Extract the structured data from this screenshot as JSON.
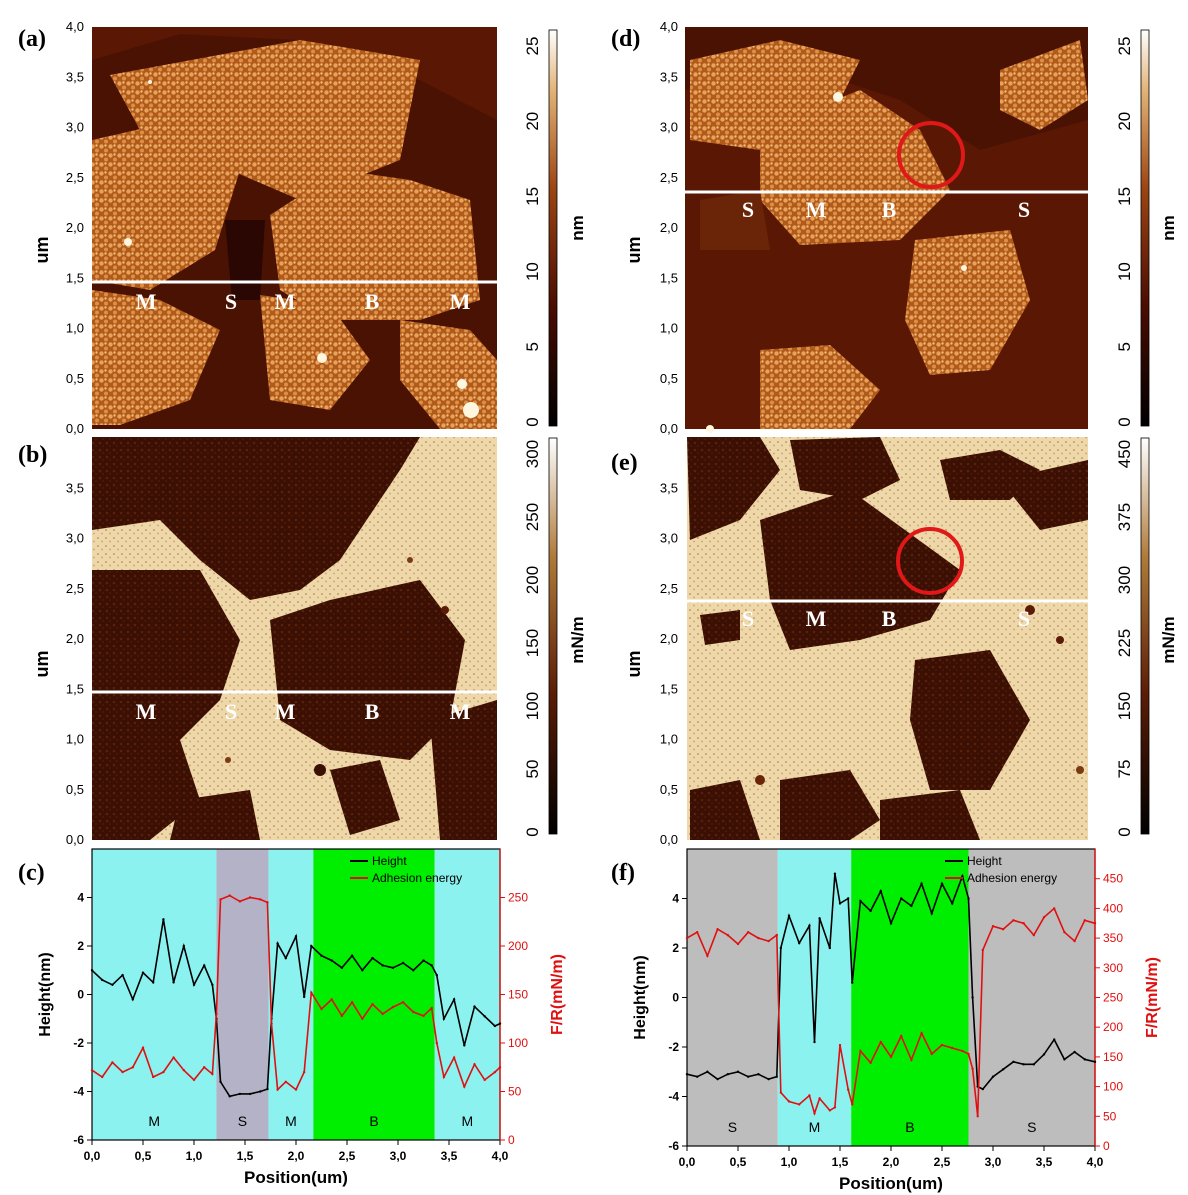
{
  "colors": {
    "afm_dark": "#3a0b02",
    "afm_mid": "#7a2a08",
    "afm_bright": "#e8a45a",
    "adh_dark": "#2a0a03",
    "adh_light": "#efd6a8",
    "region_M": "#8cf2f0",
    "region_S": "#b4b2c6",
    "region_S_f": "#bdbdbd",
    "region_B": "#00ee00",
    "height_line": "#000000",
    "adhesion_line": "#e01010",
    "circle": "#e01818",
    "right_axis": "#e01010"
  },
  "panels": {
    "a": {
      "label": "(a)",
      "regions": [
        "M",
        "S",
        "M",
        "B",
        "M"
      ],
      "colorbar_ticks": [
        "0",
        "5",
        "10",
        "15",
        "20",
        "25"
      ],
      "colorbar_unit": "nm"
    },
    "b": {
      "label": "(b)",
      "regions": [
        "M",
        "S",
        "M",
        "B",
        "M"
      ],
      "colorbar_ticks": [
        "0",
        "50",
        "100",
        "150",
        "200",
        "250",
        "300"
      ],
      "colorbar_unit": "mN/m"
    },
    "d": {
      "label": "(d)",
      "regions": [
        "S",
        "M",
        "B",
        "S"
      ],
      "colorbar_ticks": [
        "0",
        "5",
        "10",
        "15",
        "20",
        "25"
      ],
      "colorbar_unit": "nm"
    },
    "e": {
      "label": "(e)",
      "regions": [
        "S",
        "M",
        "B",
        "S"
      ],
      "colorbar_ticks": [
        "0",
        "75",
        "150",
        "225",
        "300",
        "375",
        "450"
      ],
      "colorbar_unit": "mN/m"
    },
    "c": {
      "label": "(c)"
    },
    "f": {
      "label": "(f)"
    },
    "image_ylabel": "um",
    "image_yticks_a": [
      "0,0",
      "0,5",
      "1,0",
      "1,5",
      "2,0",
      "2,5",
      "3,0",
      "3,5",
      "4,0"
    ],
    "image_yticks_b": [
      "0,0",
      "0,5",
      "1,0",
      "1,5",
      "2,0",
      "2,5",
      "3,0",
      "3,5"
    ]
  },
  "chart_data": [
    {
      "id": "c",
      "type": "line",
      "xlabel": "Position(um)",
      "ylabel": "Height(nm)",
      "ylabel_right": "F/R(mN/m)",
      "xlim": [
        0,
        4
      ],
      "ylim": [
        -6,
        6
      ],
      "ylim_right": [
        0,
        300
      ],
      "xticks": [
        "0,0",
        "0,5",
        "1,0",
        "1,5",
        "2,0",
        "2,5",
        "3,0",
        "3,5",
        "4,0"
      ],
      "yticks": [
        "-6",
        "-4",
        "-2",
        "0",
        "2",
        "4"
      ],
      "yticks_right": [
        "0",
        "50",
        "100",
        "150",
        "200",
        "250"
      ],
      "legend": [
        "Height",
        "Adhesion energy"
      ],
      "legend_position": "top-right",
      "regions": [
        {
          "label": "M",
          "x0": 0.0,
          "x1": 1.22
        },
        {
          "label": "S",
          "x0": 1.22,
          "x1": 1.73
        },
        {
          "label": "M",
          "x0": 1.73,
          "x1": 2.17
        },
        {
          "label": "B",
          "x0": 2.17,
          "x1": 3.36
        },
        {
          "label": "M",
          "x0": 3.36,
          "x1": 4.0
        }
      ],
      "series": [
        {
          "name": "Height",
          "axis": "left",
          "x": [
            0.0,
            0.1,
            0.2,
            0.3,
            0.4,
            0.5,
            0.6,
            0.7,
            0.8,
            0.9,
            1.0,
            1.1,
            1.18,
            1.22,
            1.26,
            1.35,
            1.45,
            1.55,
            1.65,
            1.72,
            1.76,
            1.82,
            1.9,
            2.0,
            2.08,
            2.15,
            2.25,
            2.35,
            2.45,
            2.55,
            2.65,
            2.75,
            2.85,
            2.95,
            3.05,
            3.15,
            3.25,
            3.33,
            3.38,
            3.45,
            3.55,
            3.65,
            3.75,
            3.85,
            3.95,
            4.0
          ],
          "values": [
            1.0,
            0.6,
            0.4,
            0.8,
            -0.2,
            0.9,
            0.5,
            3.1,
            0.5,
            2.0,
            0.4,
            1.2,
            0.4,
            -1.0,
            -3.6,
            -4.2,
            -4.1,
            -4.1,
            -4.0,
            -3.9,
            -1.0,
            2.1,
            1.5,
            2.4,
            -0.1,
            2.0,
            1.6,
            1.4,
            1.1,
            1.6,
            1.0,
            1.5,
            1.2,
            1.1,
            1.3,
            1.0,
            1.4,
            1.2,
            0.8,
            -1.0,
            -0.2,
            -2.1,
            -0.5,
            -0.9,
            -1.3,
            -1.2
          ]
        },
        {
          "name": "Adhesion energy",
          "axis": "right",
          "x": [
            0.0,
            0.1,
            0.2,
            0.3,
            0.4,
            0.5,
            0.6,
            0.7,
            0.8,
            0.9,
            1.0,
            1.1,
            1.18,
            1.22,
            1.26,
            1.35,
            1.45,
            1.55,
            1.65,
            1.72,
            1.76,
            1.82,
            1.9,
            2.0,
            2.08,
            2.15,
            2.25,
            2.35,
            2.45,
            2.55,
            2.65,
            2.75,
            2.85,
            2.95,
            3.05,
            3.15,
            3.25,
            3.33,
            3.38,
            3.45,
            3.55,
            3.65,
            3.75,
            3.85,
            3.95,
            4.0
          ],
          "values": [
            72,
            65,
            80,
            70,
            75,
            95,
            65,
            70,
            85,
            72,
            62,
            75,
            68,
            130,
            248,
            252,
            246,
            250,
            248,
            245,
            120,
            52,
            60,
            52,
            70,
            152,
            135,
            145,
            128,
            142,
            125,
            140,
            130,
            137,
            142,
            132,
            128,
            136,
            100,
            65,
            85,
            55,
            78,
            62,
            70,
            75
          ]
        }
      ]
    },
    {
      "id": "f",
      "type": "line",
      "xlabel": "Position(um)",
      "ylabel": "Height(nm)",
      "ylabel_right": "F/R(mN/m)",
      "xlim": [
        0,
        4
      ],
      "ylim": [
        -6,
        6
      ],
      "ylim_right": [
        0,
        500
      ],
      "xticks": [
        "0,0",
        "0,5",
        "1,0",
        "1,5",
        "2,0",
        "2,5",
        "3,0",
        "3,5",
        "4,0"
      ],
      "yticks": [
        "-6",
        "-4",
        "-2",
        "0",
        "2",
        "4"
      ],
      "yticks_right": [
        "0",
        "50",
        "100",
        "150",
        "200",
        "250",
        "300",
        "350",
        "400",
        "450"
      ],
      "legend": [
        "Height",
        "Adhesion energy"
      ],
      "legend_position": "top-right",
      "regions": [
        {
          "label": "S",
          "x0": 0.0,
          "x1": 0.89
        },
        {
          "label": "M",
          "x0": 0.89,
          "x1": 1.61
        },
        {
          "label": "B",
          "x0": 1.61,
          "x1": 2.76
        },
        {
          "label": "S",
          "x0": 2.76,
          "x1": 4.0
        }
      ],
      "series": [
        {
          "name": "Height",
          "axis": "left",
          "x": [
            0.0,
            0.1,
            0.2,
            0.3,
            0.4,
            0.5,
            0.6,
            0.7,
            0.8,
            0.88,
            0.92,
            1.0,
            1.1,
            1.2,
            1.25,
            1.3,
            1.4,
            1.45,
            1.5,
            1.58,
            1.62,
            1.7,
            1.8,
            1.9,
            2.0,
            2.1,
            2.2,
            2.3,
            2.4,
            2.5,
            2.6,
            2.7,
            2.76,
            2.8,
            2.85,
            2.9,
            3.0,
            3.1,
            3.2,
            3.3,
            3.4,
            3.5,
            3.6,
            3.7,
            3.8,
            3.9,
            4.0
          ],
          "values": [
            -3.1,
            -3.2,
            -3.0,
            -3.3,
            -3.1,
            -3.0,
            -3.2,
            -3.1,
            -3.3,
            -3.2,
            2.0,
            3.3,
            2.2,
            2.9,
            -1.8,
            3.2,
            2.0,
            5.0,
            3.8,
            4.0,
            0.6,
            3.9,
            3.5,
            4.3,
            3.0,
            4.0,
            3.7,
            4.6,
            3.4,
            4.6,
            3.8,
            4.9,
            4.0,
            0.0,
            -3.6,
            -3.7,
            -3.2,
            -2.9,
            -2.6,
            -2.7,
            -2.7,
            -2.3,
            -1.7,
            -2.5,
            -2.2,
            -2.5,
            -2.6
          ]
        },
        {
          "name": "Adhesion energy",
          "axis": "right",
          "x": [
            0.0,
            0.1,
            0.2,
            0.3,
            0.4,
            0.5,
            0.6,
            0.7,
            0.8,
            0.88,
            0.92,
            1.0,
            1.1,
            1.2,
            1.25,
            1.3,
            1.4,
            1.45,
            1.5,
            1.58,
            1.62,
            1.7,
            1.8,
            1.9,
            2.0,
            2.1,
            2.2,
            2.3,
            2.4,
            2.5,
            2.6,
            2.7,
            2.76,
            2.8,
            2.85,
            2.9,
            3.0,
            3.1,
            3.2,
            3.3,
            3.4,
            3.5,
            3.6,
            3.7,
            3.8,
            3.9,
            4.0
          ],
          "values": [
            350,
            360,
            320,
            365,
            355,
            340,
            360,
            350,
            345,
            355,
            90,
            75,
            70,
            85,
            55,
            80,
            60,
            65,
            170,
            95,
            70,
            160,
            140,
            175,
            150,
            185,
            145,
            190,
            155,
            170,
            165,
            160,
            155,
            130,
            50,
            330,
            370,
            365,
            380,
            375,
            355,
            385,
            400,
            360,
            345,
            380,
            375
          ]
        }
      ]
    }
  ]
}
